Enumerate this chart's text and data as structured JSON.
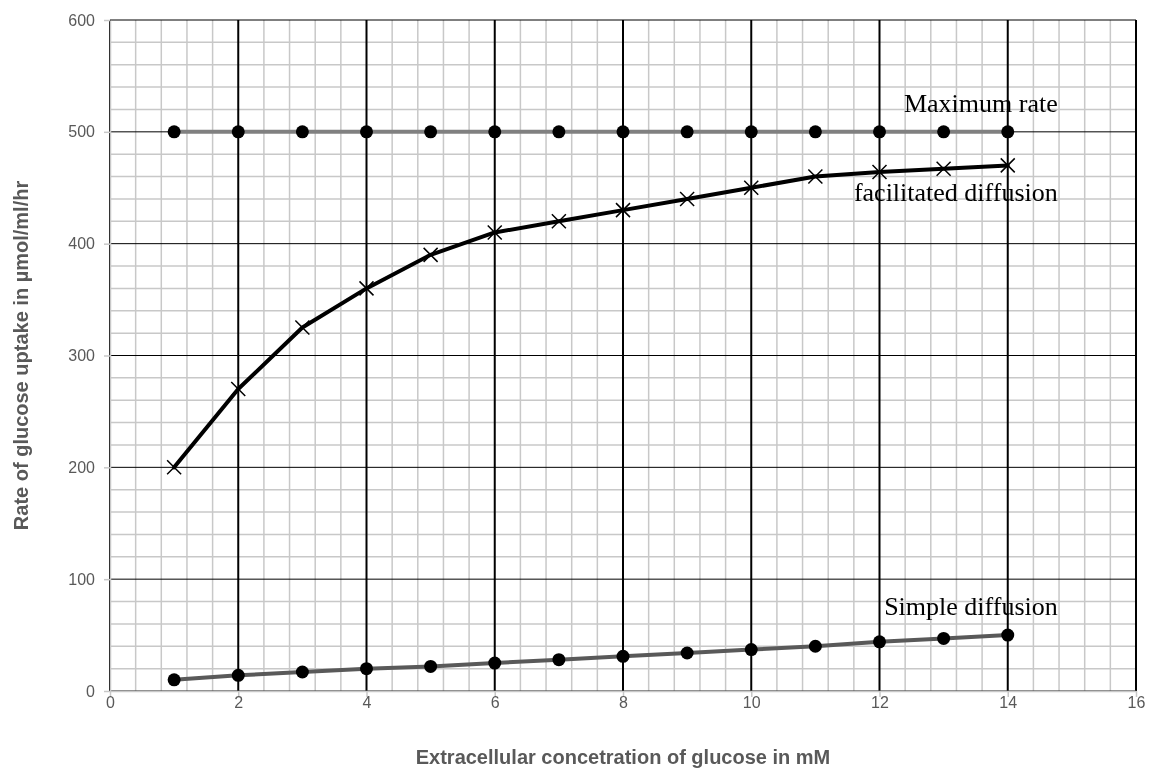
{
  "chart_data": {
    "type": "line",
    "xlabel": "Extracellular concetration of glucose in mM",
    "ylabel": "Rate of glucose uptake in µmol/ml/hr",
    "x": [
      1,
      2,
      3,
      4,
      5,
      6,
      7,
      8,
      9,
      10,
      11,
      12,
      13,
      14
    ],
    "xlim": [
      0,
      16
    ],
    "xticks": [
      0,
      2,
      4,
      6,
      8,
      10,
      12,
      14,
      16
    ],
    "ylim": [
      0,
      600
    ],
    "yticks": [
      0,
      100,
      200,
      300,
      400,
      500,
      600
    ],
    "grid": true,
    "series": [
      {
        "name": "Maximum rate",
        "color": "#808080",
        "marker": "circle",
        "values": [
          500,
          500,
          500,
          500,
          500,
          500,
          500,
          500,
          500,
          500,
          500,
          500,
          500,
          500
        ]
      },
      {
        "name": "facilitated diffusion",
        "color": "#000000",
        "marker": "cross",
        "values": [
          200,
          270,
          325,
          360,
          390,
          410,
          420,
          430,
          440,
          450,
          460,
          464,
          467,
          470
        ]
      },
      {
        "name": "Simple diffusion",
        "color": "#595959",
        "marker": "circle",
        "values": [
          10,
          14,
          17,
          20,
          22,
          25,
          28,
          31,
          34,
          37,
          40,
          44,
          47,
          50
        ]
      }
    ]
  }
}
